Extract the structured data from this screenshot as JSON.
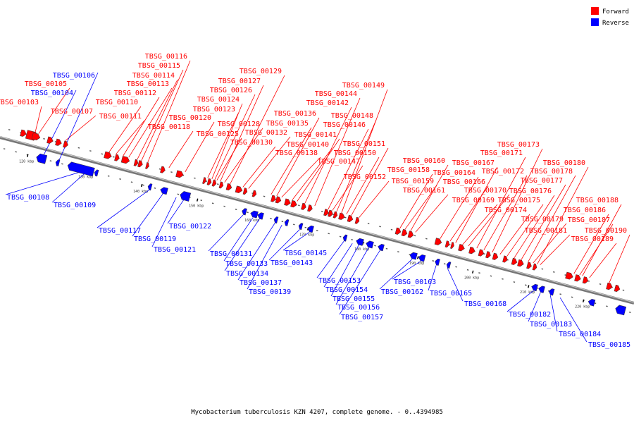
{
  "caption": "Mycobacterium tuberculosis KZN 4207, complete genome. - 0..4394985",
  "legend": [
    {
      "label": "Forward",
      "color": "#ff0000"
    },
    {
      "label": "Reverse",
      "color": "#0000ff"
    }
  ],
  "colors": {
    "forward": "#ff0000",
    "reverse": "#0000ff",
    "backbone": "#888888"
  },
  "ticks": [
    "120 kbp",
    "130 kbp",
    "140 kbp",
    "150 kbp",
    "160 kbp",
    "170 kbp",
    "180 kbp",
    "190 kbp",
    "200 kbp",
    "210 kbp",
    "220 kbp"
  ],
  "forward_genes": [
    "TBSG_00103",
    "TBSG_00105",
    "TBSG_00107",
    "TBSG_00110",
    "TBSG_00111",
    "TBSG_00112",
    "TBSG_00113",
    "TBSG_00114",
    "TBSG_00115",
    "TBSG_00116",
    "TBSG_00118",
    "TBSG_00120",
    "TBSG_00123",
    "TBSG_00124",
    "TBSG_00125",
    "TBSG_00126",
    "TBSG_00127",
    "TBSG_00128",
    "TBSG_00129",
    "TBSG_00130",
    "TBSG_00132",
    "TBSG_00135",
    "TBSG_00136",
    "TBSG_00138",
    "TBSG_00140",
    "TBSG_00141",
    "TBSG_00142",
    "TBSG_00144",
    "TBSG_00146",
    "TBSG_00147",
    "TBSG_00148",
    "TBSG_00149",
    "TBSG_00150",
    "TBSG_00151",
    "TBSG_00152",
    "TBSG_00158",
    "TBSG_00159",
    "TBSG_00160",
    "TBSG_00161",
    "TBSG_00164",
    "TBSG_00166",
    "TBSG_00167",
    "TBSG_00169",
    "TBSG_00170",
    "TBSG_00171",
    "TBSG_00172",
    "TBSG_00173",
    "TBSG_00174",
    "TBSG_00175",
    "TBSG_00176",
    "TBSG_00177",
    "TBSG_00178",
    "TBSG_00179",
    "TBSG_00180",
    "TBSG_00181",
    "TBSG_00186",
    "TBSG_00187",
    "TBSG_00188",
    "TBSG_00189",
    "TBSG_00190"
  ],
  "reverse_genes": [
    "TBSG_00104",
    "TBSG_00106",
    "TBSG_00108",
    "TBSG_00109",
    "TBSG_00117",
    "TBSG_00119",
    "TBSG_00121",
    "TBSG_00122",
    "TBSG_00131",
    "TBSG_00133",
    "TBSG_00134",
    "TBSG_00137",
    "TBSG_00139",
    "TBSG_00143",
    "TBSG_00145",
    "TBSG_00153",
    "TBSG_00154",
    "TBSG_00155",
    "TBSG_00156",
    "TBSG_00157",
    "TBSG_00162",
    "TBSG_00163",
    "TBSG_00165",
    "TBSG_00168",
    "TBSG_00182",
    "TBSG_00183",
    "TBSG_00184",
    "TBSG_00185"
  ]
}
